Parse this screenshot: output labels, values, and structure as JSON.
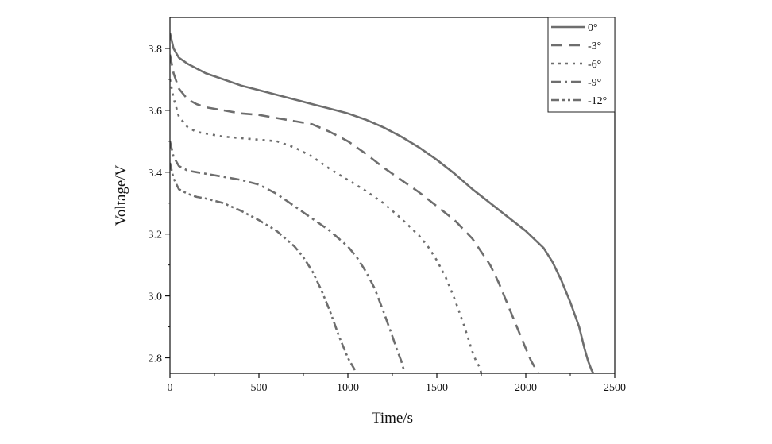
{
  "chart_data": {
    "type": "line",
    "title": "",
    "xlabel": "Time/s",
    "ylabel": "Voltage/V",
    "xlim": [
      0,
      2500
    ],
    "ylim": [
      2.75,
      3.9
    ],
    "xticks": [
      0,
      500,
      1000,
      1500,
      2000,
      2500
    ],
    "xtick_labels": [
      "0",
      "500",
      "1000",
      "1500",
      "2000",
      "2500"
    ],
    "yticks": [
      2.8,
      3.0,
      3.2,
      3.4,
      3.6,
      3.8
    ],
    "ytick_labels": [
      "2.8",
      "3.0",
      "3.2",
      "3.4",
      "3.6",
      "3.8"
    ],
    "grid": false,
    "legend_position": "top-right",
    "line_color": "#6e6e6e",
    "series": [
      {
        "name": "0°",
        "style": "solid",
        "x": [
          0,
          20,
          50,
          100,
          200,
          300,
          400,
          500,
          600,
          700,
          800,
          900,
          1000,
          1100,
          1200,
          1300,
          1400,
          1500,
          1600,
          1700,
          1800,
          1900,
          2000,
          2100,
          2150,
          2200,
          2250,
          2300,
          2330,
          2350,
          2370,
          2380
        ],
        "y": [
          3.85,
          3.8,
          3.77,
          3.75,
          3.72,
          3.7,
          3.68,
          3.665,
          3.65,
          3.635,
          3.62,
          3.605,
          3.59,
          3.57,
          3.545,
          3.515,
          3.48,
          3.44,
          3.395,
          3.345,
          3.3,
          3.255,
          3.21,
          3.155,
          3.11,
          3.05,
          2.98,
          2.9,
          2.83,
          2.79,
          2.76,
          2.75
        ]
      },
      {
        "name": "-3°",
        "style": "dash",
        "x": [
          0,
          20,
          50,
          100,
          150,
          200,
          300,
          400,
          500,
          600,
          700,
          800,
          900,
          1000,
          1100,
          1200,
          1300,
          1400,
          1500,
          1600,
          1700,
          1800,
          1850,
          1900,
          1950,
          2000,
          2030,
          2050,
          2070
        ],
        "y": [
          3.78,
          3.72,
          3.67,
          3.635,
          3.62,
          3.61,
          3.6,
          3.59,
          3.585,
          3.575,
          3.565,
          3.555,
          3.53,
          3.5,
          3.46,
          3.415,
          3.375,
          3.335,
          3.29,
          3.245,
          3.185,
          3.1,
          3.04,
          2.97,
          2.9,
          2.83,
          2.79,
          2.77,
          2.75
        ]
      },
      {
        "name": "-6°",
        "style": "dot",
        "x": [
          0,
          20,
          50,
          100,
          150,
          200,
          300,
          400,
          500,
          600,
          700,
          800,
          900,
          1000,
          1100,
          1200,
          1300,
          1400,
          1450,
          1500,
          1550,
          1600,
          1650,
          1700,
          1720,
          1740,
          1750
        ],
        "y": [
          3.7,
          3.64,
          3.58,
          3.545,
          3.53,
          3.525,
          3.515,
          3.51,
          3.505,
          3.5,
          3.48,
          3.45,
          3.41,
          3.375,
          3.34,
          3.3,
          3.25,
          3.195,
          3.16,
          3.115,
          3.06,
          2.99,
          2.91,
          2.82,
          2.79,
          2.77,
          2.75
        ]
      },
      {
        "name": "-9°",
        "style": "dashdot",
        "x": [
          0,
          20,
          50,
          100,
          150,
          200,
          300,
          400,
          500,
          600,
          700,
          800,
          900,
          1000,
          1050,
          1100,
          1150,
          1200,
          1250,
          1280,
          1300,
          1320
        ],
        "y": [
          3.5,
          3.45,
          3.42,
          3.405,
          3.4,
          3.395,
          3.385,
          3.375,
          3.36,
          3.33,
          3.29,
          3.25,
          3.21,
          3.16,
          3.125,
          3.08,
          3.025,
          2.95,
          2.87,
          2.82,
          2.79,
          2.75
        ]
      },
      {
        "name": "-12°",
        "style": "dashdotdot",
        "x": [
          0,
          20,
          50,
          100,
          150,
          200,
          300,
          400,
          500,
          600,
          700,
          750,
          800,
          850,
          900,
          950,
          1000,
          1030,
          1050
        ],
        "y": [
          3.43,
          3.38,
          3.345,
          3.33,
          3.32,
          3.315,
          3.3,
          3.275,
          3.245,
          3.21,
          3.16,
          3.125,
          3.08,
          3.02,
          2.95,
          2.87,
          2.8,
          2.77,
          2.75
        ]
      }
    ]
  }
}
